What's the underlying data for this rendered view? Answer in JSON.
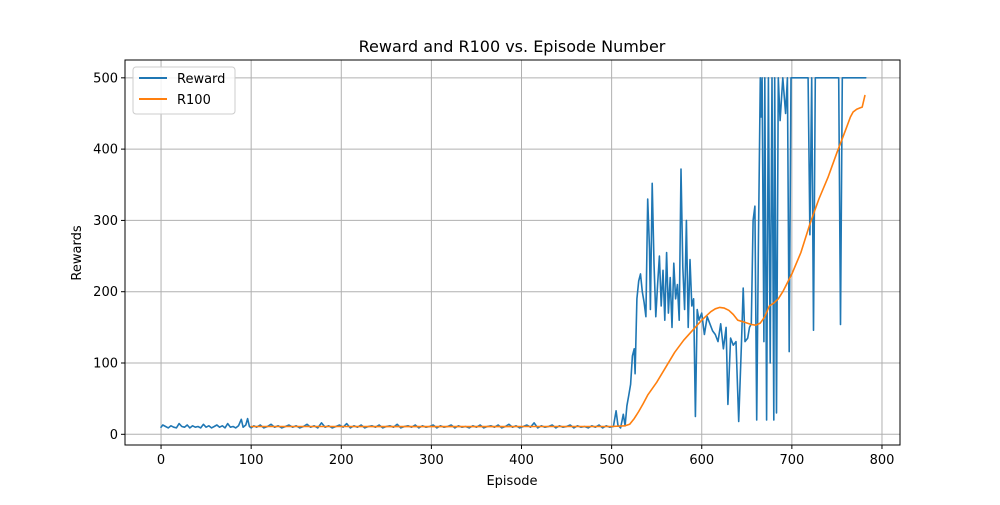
{
  "chart_data": {
    "type": "line",
    "title": "Reward and R100 vs. Episode Number",
    "xlabel": "Episode",
    "ylabel": "Rewards",
    "xlim": [
      -40,
      820
    ],
    "ylim": [
      -15,
      525
    ],
    "xticks": [
      0,
      100,
      200,
      300,
      400,
      500,
      600,
      700,
      800
    ],
    "yticks": [
      0,
      100,
      200,
      300,
      400,
      500
    ],
    "grid": true,
    "legend_position": "top-left",
    "series": [
      {
        "name": "Reward",
        "color": "#1f77b4",
        "points": [
          [
            0,
            10
          ],
          [
            2,
            13
          ],
          [
            5,
            11
          ],
          [
            8,
            9
          ],
          [
            11,
            12
          ],
          [
            14,
            10
          ],
          [
            17,
            9
          ],
          [
            20,
            15
          ],
          [
            23,
            11
          ],
          [
            26,
            10
          ],
          [
            29,
            13
          ],
          [
            32,
            9
          ],
          [
            35,
            12
          ],
          [
            38,
            10
          ],
          [
            41,
            11
          ],
          [
            44,
            9
          ],
          [
            47,
            14
          ],
          [
            50,
            10
          ],
          [
            53,
            12
          ],
          [
            56,
            9
          ],
          [
            59,
            11
          ],
          [
            62,
            13
          ],
          [
            65,
            10
          ],
          [
            68,
            12
          ],
          [
            71,
            9
          ],
          [
            74,
            15
          ],
          [
            77,
            10
          ],
          [
            80,
            11
          ],
          [
            83,
            9
          ],
          [
            86,
            12
          ],
          [
            89,
            21
          ],
          [
            91,
            10
          ],
          [
            94,
            13
          ],
          [
            96,
            22
          ],
          [
            98,
            11
          ],
          [
            100,
            9
          ],
          [
            103,
            12
          ],
          [
            106,
            10
          ],
          [
            110,
            13
          ],
          [
            114,
            9
          ],
          [
            118,
            11
          ],
          [
            122,
            14
          ],
          [
            126,
            10
          ],
          [
            130,
            12
          ],
          [
            134,
            9
          ],
          [
            138,
            11
          ],
          [
            142,
            13
          ],
          [
            146,
            10
          ],
          [
            150,
            12
          ],
          [
            154,
            9
          ],
          [
            158,
            11
          ],
          [
            162,
            14
          ],
          [
            166,
            10
          ],
          [
            170,
            12
          ],
          [
            174,
            9
          ],
          [
            178,
            16
          ],
          [
            182,
            10
          ],
          [
            186,
            12
          ],
          [
            190,
            9
          ],
          [
            194,
            11
          ],
          [
            198,
            13
          ],
          [
            202,
            10
          ],
          [
            206,
            15
          ],
          [
            210,
            9
          ],
          [
            214,
            12
          ],
          [
            218,
            10
          ],
          [
            222,
            13
          ],
          [
            226,
            9
          ],
          [
            230,
            11
          ],
          [
            234,
            12
          ],
          [
            238,
            10
          ],
          [
            242,
            13
          ],
          [
            246,
            9
          ],
          [
            250,
            11
          ],
          [
            254,
            12
          ],
          [
            258,
            10
          ],
          [
            262,
            14
          ],
          [
            266,
            9
          ],
          [
            270,
            11
          ],
          [
            274,
            12
          ],
          [
            278,
            10
          ],
          [
            282,
            13
          ],
          [
            286,
            9
          ],
          [
            290,
            12
          ],
          [
            294,
            10
          ],
          [
            298,
            11
          ],
          [
            302,
            13
          ],
          [
            306,
            9
          ],
          [
            310,
            12
          ],
          [
            314,
            10
          ],
          [
            318,
            11
          ],
          [
            322,
            13
          ],
          [
            326,
            9
          ],
          [
            330,
            12
          ],
          [
            334,
            10
          ],
          [
            338,
            11
          ],
          [
            342,
            9
          ],
          [
            346,
            12
          ],
          [
            350,
            10
          ],
          [
            354,
            13
          ],
          [
            358,
            9
          ],
          [
            362,
            11
          ],
          [
            366,
            12
          ],
          [
            370,
            10
          ],
          [
            374,
            13
          ],
          [
            378,
            9
          ],
          [
            382,
            11
          ],
          [
            386,
            14
          ],
          [
            390,
            10
          ],
          [
            394,
            12
          ],
          [
            398,
            9
          ],
          [
            402,
            11
          ],
          [
            406,
            13
          ],
          [
            410,
            10
          ],
          [
            414,
            16
          ],
          [
            418,
            9
          ],
          [
            422,
            12
          ],
          [
            426,
            10
          ],
          [
            430,
            11
          ],
          [
            434,
            13
          ],
          [
            438,
            9
          ],
          [
            442,
            12
          ],
          [
            446,
            10
          ],
          [
            450,
            11
          ],
          [
            454,
            13
          ],
          [
            458,
            9
          ],
          [
            462,
            12
          ],
          [
            466,
            10
          ],
          [
            470,
            11
          ],
          [
            474,
            9
          ],
          [
            478,
            12
          ],
          [
            482,
            10
          ],
          [
            486,
            13
          ],
          [
            490,
            9
          ],
          [
            494,
            12
          ],
          [
            498,
            10
          ],
          [
            502,
            11
          ],
          [
            505,
            33
          ],
          [
            507,
            13
          ],
          [
            510,
            9
          ],
          [
            513,
            28
          ],
          [
            515,
            12
          ],
          [
            517,
            40
          ],
          [
            519,
            55
          ],
          [
            521,
            70
          ],
          [
            523,
            110
          ],
          [
            525,
            120
          ],
          [
            526,
            85
          ],
          [
            528,
            190
          ],
          [
            530,
            215
          ],
          [
            532,
            225
          ],
          [
            534,
            200
          ],
          [
            536,
            185
          ],
          [
            538,
            165
          ],
          [
            540,
            330
          ],
          [
            542,
            260
          ],
          [
            543,
            175
          ],
          [
            545,
            352
          ],
          [
            547,
            240
          ],
          [
            549,
            165
          ],
          [
            551,
            210
          ],
          [
            553,
            250
          ],
          [
            555,
            180
          ],
          [
            557,
            230
          ],
          [
            559,
            160
          ],
          [
            561,
            255
          ],
          [
            563,
            170
          ],
          [
            565,
            220
          ],
          [
            567,
            150
          ],
          [
            569,
            240
          ],
          [
            571,
            190
          ],
          [
            573,
            210
          ],
          [
            575,
            160
          ],
          [
            577,
            372
          ],
          [
            579,
            235
          ],
          [
            581,
            175
          ],
          [
            583,
            300
          ],
          [
            585,
            150
          ],
          [
            587,
            245
          ],
          [
            589,
            180
          ],
          [
            591,
            190
          ],
          [
            593,
            25
          ],
          [
            595,
            175
          ],
          [
            597,
            160
          ],
          [
            600,
            170
          ],
          [
            603,
            140
          ],
          [
            606,
            165
          ],
          [
            609,
            155
          ],
          [
            612,
            145
          ],
          [
            615,
            140
          ],
          [
            618,
            130
          ],
          [
            621,
            155
          ],
          [
            624,
            120
          ],
          [
            627,
            150
          ],
          [
            629,
            42
          ],
          [
            632,
            135
          ],
          [
            635,
            125
          ],
          [
            638,
            130
          ],
          [
            641,
            18
          ],
          [
            644,
            125
          ],
          [
            646,
            205
          ],
          [
            648,
            130
          ],
          [
            651,
            135
          ],
          [
            653,
            150
          ],
          [
            655,
            155
          ],
          [
            657,
            300
          ],
          [
            659,
            320
          ],
          [
            661,
            20
          ],
          [
            663,
            280
          ],
          [
            665,
            500
          ],
          [
            666,
            445
          ],
          [
            667,
            500
          ],
          [
            669,
            130
          ],
          [
            670,
            500
          ],
          [
            672,
            20
          ],
          [
            674,
            500
          ],
          [
            676,
            100
          ],
          [
            678,
            500
          ],
          [
            680,
            20
          ],
          [
            681,
            500
          ],
          [
            683,
            30
          ],
          [
            685,
            500
          ],
          [
            687,
            440
          ],
          [
            690,
            500
          ],
          [
            693,
            450
          ],
          [
            695,
            500
          ],
          [
            697,
            116
          ],
          [
            699,
            500
          ],
          [
            710,
            500
          ],
          [
            718,
            500
          ],
          [
            720,
            280
          ],
          [
            722,
            500
          ],
          [
            724,
            146
          ],
          [
            726,
            500
          ],
          [
            740,
            500
          ],
          [
            752,
            500
          ],
          [
            754,
            154
          ],
          [
            756,
            500
          ],
          [
            782,
            500
          ]
        ]
      },
      {
        "name": "R100",
        "color": "#ff7f0e",
        "points": [
          [
            100,
            11
          ],
          [
            200,
            11
          ],
          [
            300,
            10.8
          ],
          [
            400,
            11
          ],
          [
            500,
            11
          ],
          [
            515,
            12
          ],
          [
            520,
            14
          ],
          [
            525,
            22
          ],
          [
            530,
            32
          ],
          [
            535,
            43
          ],
          [
            540,
            55
          ],
          [
            550,
            73
          ],
          [
            560,
            94
          ],
          [
            570,
            115
          ],
          [
            580,
            132
          ],
          [
            590,
            146
          ],
          [
            600,
            160
          ],
          [
            610,
            172
          ],
          [
            615,
            176
          ],
          [
            620,
            178
          ],
          [
            625,
            177
          ],
          [
            630,
            174
          ],
          [
            635,
            168
          ],
          [
            640,
            160
          ],
          [
            648,
            157
          ],
          [
            655,
            154
          ],
          [
            660,
            153
          ],
          [
            665,
            156
          ],
          [
            670,
            165
          ],
          [
            675,
            180
          ],
          [
            680,
            184
          ],
          [
            685,
            190
          ],
          [
            690,
            200
          ],
          [
            700,
            225
          ],
          [
            710,
            255
          ],
          [
            720,
            295
          ],
          [
            730,
            330
          ],
          [
            740,
            360
          ],
          [
            750,
            395
          ],
          [
            760,
            428
          ],
          [
            765,
            445
          ],
          [
            768,
            452
          ],
          [
            772,
            456
          ],
          [
            776,
            458
          ],
          [
            778,
            459
          ],
          [
            781,
            475
          ]
        ]
      }
    ]
  }
}
